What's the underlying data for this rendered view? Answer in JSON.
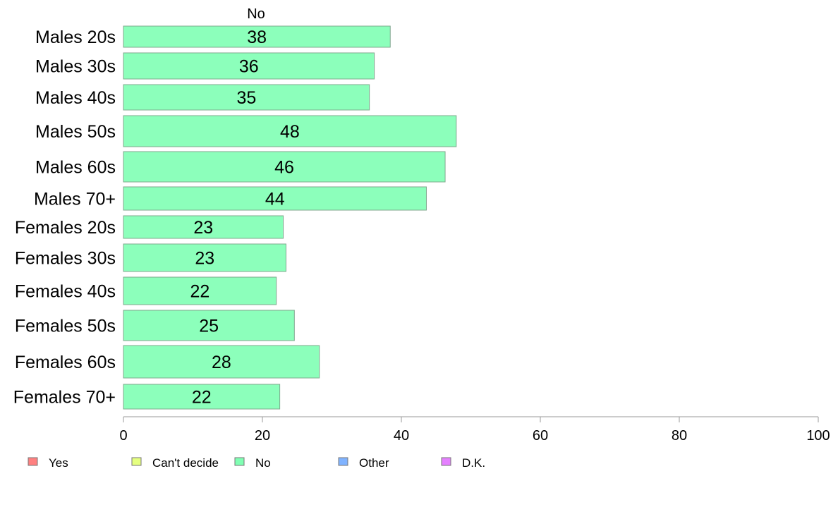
{
  "chart_data": {
    "type": "bar",
    "orientation": "horizontal",
    "series_title": "No",
    "categories": [
      "Males 20s",
      "Males 30s",
      "Males 40s",
      "Males 50s",
      "Males 60s",
      "Males 70+",
      "Females 20s",
      "Females 30s",
      "Females 40s",
      "Females 50s",
      "Females 60s",
      "Females 70+"
    ],
    "series": [
      {
        "name": "No",
        "values": [
          38.4,
          36.1,
          35.4,
          47.9,
          46.3,
          43.6,
          23.0,
          23.4,
          22.0,
          24.6,
          28.2,
          22.5
        ],
        "labels": [
          "38",
          "36",
          "35",
          "48",
          "46",
          "44",
          "23",
          "23",
          "22",
          "25",
          "28",
          "22"
        ]
      }
    ],
    "xlim": [
      0,
      100
    ],
    "xticks": [
      "0",
      "20",
      "40",
      "60",
      "80",
      "100"
    ],
    "grid": false,
    "legend_position": "bottom-left",
    "legend": [
      {
        "label": "Yes",
        "color": "#ff8080"
      },
      {
        "label": "Can't decide",
        "color": "#e5ff80"
      },
      {
        "label": "No",
        "color": "#80ffb3"
      },
      {
        "label": "Other",
        "color": "#80b3ff"
      },
      {
        "label": "D.K.",
        "color": "#e580ff"
      }
    ],
    "bar_color": "#8cffbb"
  }
}
